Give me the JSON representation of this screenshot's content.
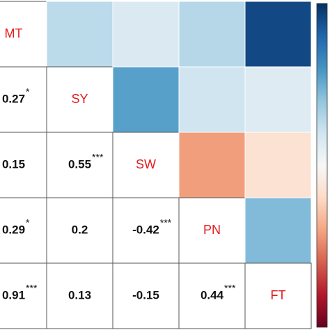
{
  "chart_data": {
    "type": "corrplot",
    "variables": [
      "MT",
      "SY",
      "SW",
      "PN",
      "FT"
    ],
    "values": [
      [],
      [
        0.27
      ],
      [
        0.15,
        0.55
      ],
      [
        0.29,
        0.2,
        -0.42
      ],
      [
        0.91,
        0.13,
        -0.15,
        0.44
      ]
    ],
    "stars": [
      [],
      [
        "*"
      ],
      [
        null,
        "***"
      ],
      [
        "*",
        null,
        "***"
      ],
      [
        "***",
        null,
        null,
        "***"
      ]
    ],
    "colorlim": [
      -1,
      1
    ],
    "colormap": [
      "#67001f",
      "#b2182b",
      "#d6604d",
      "#f4a582",
      "#fddbc7",
      "#f7f7f7",
      "#d1e5f0",
      "#92c5de",
      "#4393c3",
      "#2166ac",
      "#053061"
    ],
    "label_color": "#e31a1c"
  }
}
